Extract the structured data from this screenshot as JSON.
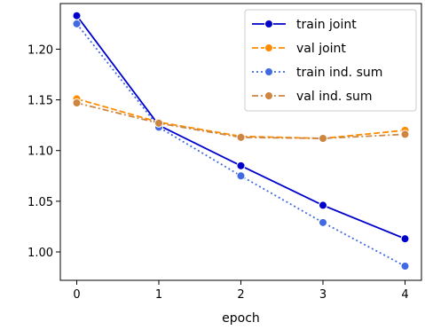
{
  "chart_data": {
    "type": "line",
    "xlabel": "epoch",
    "ylabel": "",
    "x": [
      0,
      1,
      2,
      3,
      4
    ],
    "xlim": [
      -0.2,
      4.2
    ],
    "ylim": [
      0.972,
      1.245
    ],
    "xticks": [
      "0",
      "1",
      "2",
      "3",
      "4"
    ],
    "yticks": [
      "1.00",
      "1.05",
      "1.10",
      "1.15",
      "1.20"
    ],
    "grid": false,
    "legend_position": "top-right",
    "series": [
      {
        "name": "train joint",
        "values": [
          1.233,
          1.125,
          1.085,
          1.046,
          1.013
        ],
        "color": "#0000cd",
        "style": "solid",
        "marker": "circle"
      },
      {
        "name": "val joint",
        "values": [
          1.151,
          1.128,
          1.114,
          1.112,
          1.12
        ],
        "color": "#ff8c00",
        "style": "dashed",
        "marker": "circle"
      },
      {
        "name": "train ind. sum",
        "values": [
          1.225,
          1.123,
          1.075,
          1.029,
          0.986
        ],
        "color": "#4169e1",
        "style": "dotted",
        "marker": "circle"
      },
      {
        "name": "val ind. sum",
        "values": [
          1.147,
          1.127,
          1.113,
          1.112,
          1.116
        ],
        "color": "#cd853f",
        "style": "dashdot",
        "marker": "circle"
      }
    ]
  }
}
